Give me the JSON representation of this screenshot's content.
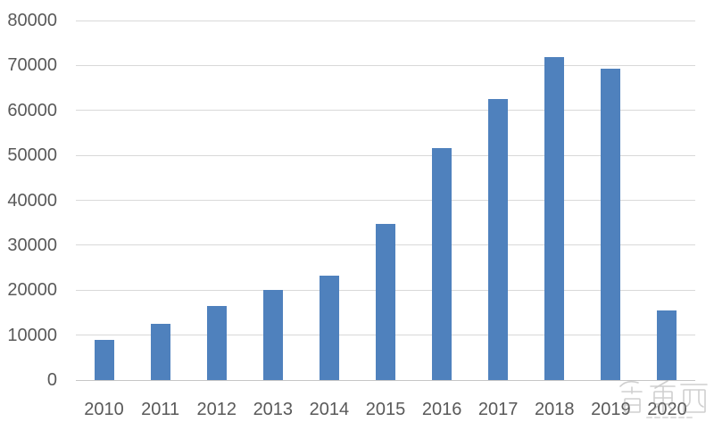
{
  "chart_data": {
    "type": "bar",
    "title": "",
    "xlabel": "",
    "ylabel": "",
    "categories": [
      "2010",
      "2011",
      "2012",
      "2013",
      "2014",
      "2015",
      "2016",
      "2017",
      "2018",
      "2019",
      "2020"
    ],
    "values": [
      9000,
      12500,
      16500,
      20000,
      23200,
      34800,
      51600,
      62500,
      71800,
      69300,
      15500
    ],
    "ylim": [
      0,
      80000
    ],
    "yticks": [
      0,
      10000,
      20000,
      30000,
      40000,
      50000,
      60000,
      70000,
      80000
    ],
    "grid": true,
    "legend": "none",
    "bar_color": "#4f81bd",
    "gridline_color": "#d9d9d9",
    "axis_line_color": "#c6c6c6",
    "tick_label_color": "#595959"
  },
  "watermark": {
    "text": "智东西",
    "color": "#8f8f8f"
  }
}
